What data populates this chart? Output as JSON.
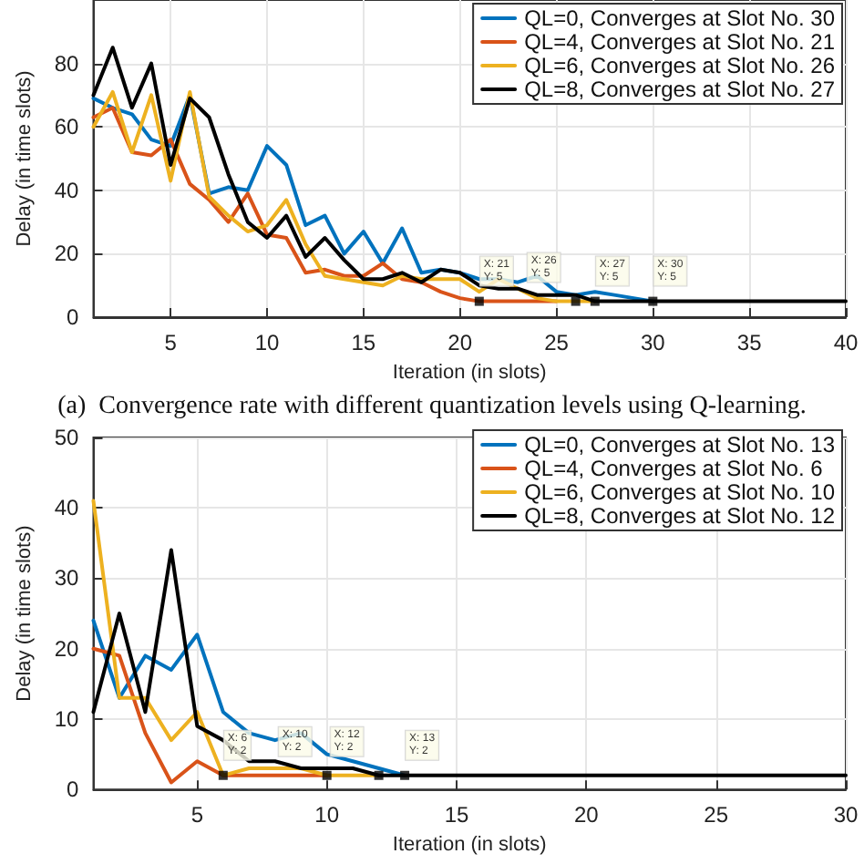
{
  "chart_data": [
    {
      "type": "line",
      "xlabel": "Iteration (in slots)",
      "ylabel": "Delay (in time slots)",
      "xlim": [
        1,
        40
      ],
      "xticks": [
        5,
        10,
        15,
        20,
        25,
        30,
        35,
        40
      ],
      "ylim": [
        0,
        100
      ],
      "yticks": [
        0,
        20,
        40,
        60,
        80
      ],
      "grid": true,
      "legend": "top right",
      "x": [
        1,
        2,
        3,
        4,
        5,
        6,
        7,
        8,
        9,
        10,
        11,
        12,
        13,
        14,
        15,
        16,
        17,
        18,
        19,
        20,
        21,
        22,
        23,
        24,
        25,
        26,
        27,
        28,
        29,
        30,
        31,
        32,
        33,
        34,
        35,
        36,
        37,
        38,
        39,
        40
      ],
      "series": [
        {
          "name": "QL=0, Converges at Slot No. 30",
          "color": "#0072bd",
          "values": [
            69,
            66,
            64,
            56,
            54,
            70,
            39,
            41,
            40,
            54,
            48,
            29,
            32,
            20,
            27,
            17,
            28,
            14,
            15,
            14,
            12,
            12,
            11,
            13,
            8,
            7,
            8,
            7,
            6,
            5,
            null,
            null,
            null,
            null,
            null,
            null,
            null,
            null,
            null,
            null
          ]
        },
        {
          "name": "QL=4, Converges at Slot No. 21",
          "color": "#d95319",
          "values": [
            63,
            66,
            52,
            51,
            56,
            42,
            37,
            30,
            39,
            26,
            25,
            14,
            15,
            13,
            13,
            17,
            12,
            11,
            8,
            6,
            5,
            5,
            5,
            5,
            5,
            null,
            null,
            null,
            null,
            null,
            null,
            null,
            null,
            null,
            null,
            null,
            null,
            null,
            null,
            null
          ]
        },
        {
          "name": "QL=6, Converges at Slot No. 26",
          "color": "#edb120",
          "values": [
            60,
            71,
            52,
            70,
            43,
            71,
            38,
            32,
            27,
            29,
            37,
            23,
            13,
            12,
            11,
            10,
            13,
            12,
            12,
            12,
            8,
            12,
            9,
            6,
            5,
            5,
            5,
            null,
            null,
            null,
            null,
            null,
            null,
            null,
            null,
            null,
            null,
            null,
            null,
            null
          ]
        },
        {
          "name": "QL=8, Converges at Slot No. 27",
          "color": "#000000",
          "values": [
            70,
            85,
            66,
            80,
            48,
            69,
            63,
            45,
            30,
            25,
            32,
            19,
            25,
            18,
            12,
            12,
            14,
            11,
            15,
            14,
            10,
            9,
            9,
            7,
            7,
            7,
            5,
            5,
            5,
            5,
            5,
            5,
            5,
            5,
            5,
            5,
            5,
            5,
            5,
            5
          ]
        }
      ],
      "annotations": [
        {
          "text": "X: 21\nY: 5",
          "x": 21,
          "y": 5
        },
        {
          "text": "X: 26\nY: 5",
          "x": 26,
          "y": 5
        },
        {
          "text": "X: 27\nY: 5",
          "x": 27,
          "y": 5
        },
        {
          "text": "X: 30\nY: 5",
          "x": 30,
          "y": 5
        },
        "(a)  Convergence rate with different quantization levels using Q-learning."
      ]
    },
    {
      "type": "line",
      "xlabel": "Iteration (in slots)",
      "ylabel": "Delay (in time slots)",
      "xlim": [
        1,
        30
      ],
      "xticks": [
        5,
        10,
        15,
        20,
        25,
        30
      ],
      "ylim": [
        0,
        50
      ],
      "yticks": [
        0,
        10,
        20,
        30,
        40,
        50
      ],
      "grid": true,
      "legend": "top right",
      "x": [
        1,
        2,
        3,
        4,
        5,
        6,
        7,
        8,
        9,
        10,
        11,
        12,
        13,
        14,
        15,
        16,
        17,
        18,
        19,
        20,
        21,
        22,
        23,
        24,
        25,
        26,
        27,
        28,
        29,
        30
      ],
      "series": [
        {
          "name": "QL=0, Converges at Slot No. 13",
          "color": "#0072bd",
          "values": [
            24,
            13,
            19,
            17,
            22,
            11,
            8,
            7,
            8,
            5,
            4,
            3,
            2,
            null,
            null,
            null,
            null,
            null,
            null,
            null,
            null,
            null,
            null,
            null,
            null,
            null,
            null,
            null,
            null,
            null
          ]
        },
        {
          "name": "QL=4, Converges at Slot No. 6",
          "color": "#d95319",
          "values": [
            20,
            19,
            8,
            1,
            4,
            2,
            2,
            2,
            2,
            2,
            null,
            null,
            null,
            null,
            null,
            null,
            null,
            null,
            null,
            null,
            null,
            null,
            null,
            null,
            null,
            null,
            null,
            null,
            null,
            null
          ]
        },
        {
          "name": "QL=6, Converges at Slot No. 10",
          "color": "#edb120",
          "values": [
            41,
            13,
            13,
            7,
            11,
            2,
            3,
            3,
            3,
            2,
            2,
            2,
            null,
            null,
            null,
            null,
            null,
            null,
            null,
            null,
            null,
            null,
            null,
            null,
            null,
            null,
            null,
            null,
            null,
            null
          ]
        },
        {
          "name": "QL=8, Converges at Slot No. 12",
          "color": "#000000",
          "values": [
            11,
            25,
            11,
            34,
            9,
            7,
            4,
            4,
            3,
            3,
            3,
            2,
            2,
            2,
            2,
            2,
            2,
            2,
            2,
            2,
            2,
            2,
            2,
            2,
            2,
            2,
            2,
            2,
            2,
            2
          ]
        }
      ],
      "annotations": [
        {
          "text": "X: 6\nY: 2",
          "x": 6,
          "y": 2
        },
        {
          "text": "X: 10\nY: 2",
          "x": 10,
          "y": 2
        },
        {
          "text": "X: 12\nY: 2",
          "x": 12,
          "y": 2
        },
        {
          "text": "X: 13\nY: 2",
          "x": 13,
          "y": 2
        }
      ]
    }
  ]
}
